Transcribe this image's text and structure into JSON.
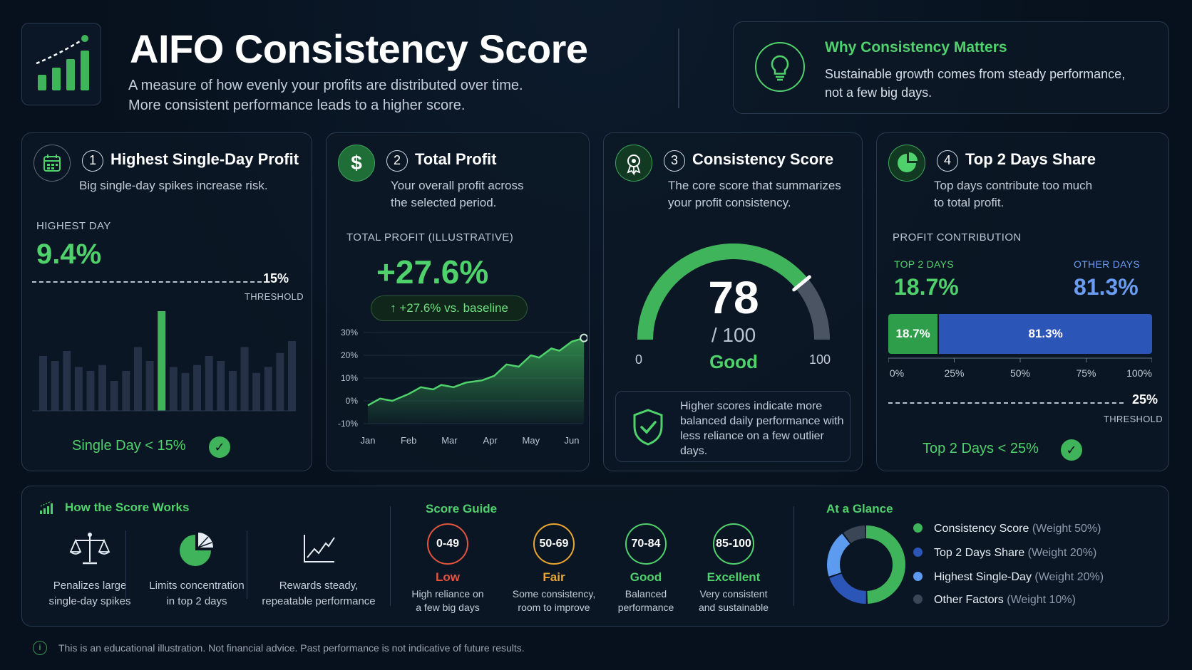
{
  "header": {
    "title": "AIFO Consistency Score",
    "subtitle_line1": "A measure of how evenly your profits are distributed over time.",
    "subtitle_line2": "More consistent performance leads to a higher score."
  },
  "why": {
    "title": "Why Consistency Matters",
    "text_line1": "Sustainable growth comes from steady performance,",
    "text_line2": "not a few big days."
  },
  "card1": {
    "number": "1",
    "title": "Highest Single-Day Profit",
    "desc": "Big single-day spikes increase risk.",
    "caption": "HIGHEST DAY",
    "value": "9.4%",
    "threshold_value": "15%",
    "threshold_label": "THRESHOLD",
    "status": "Single Day < 15%",
    "bar_heights": [
      0.55,
      0.5,
      0.6,
      0.44,
      0.4,
      0.46,
      0.3,
      0.4,
      0.64,
      0.5,
      1.0,
      0.44,
      0.38,
      0.46,
      0.55,
      0.5,
      0.4,
      0.64,
      0.38,
      0.44,
      0.58,
      0.7
    ],
    "highlight_index": 10
  },
  "card2": {
    "number": "2",
    "title": "Total Profit",
    "desc_line1": "Your overall profit across",
    "desc_line2": "the selected period.",
    "caption": "TOTAL PROFIT (ILLUSTRATIVE)",
    "value": "+27.6%",
    "badge": "+27.6% vs. baseline"
  },
  "chart_data": {
    "type": "area",
    "x": [
      "Jan",
      "Feb",
      "Mar",
      "Apr",
      "May",
      "Jun"
    ],
    "y_ticks": [
      "30%",
      "20%",
      "10%",
      "0%",
      "-10%"
    ],
    "ylim": [
      -10,
      30
    ],
    "points": [
      [
        0,
        -2
      ],
      [
        0.3,
        1
      ],
      [
        0.6,
        0
      ],
      [
        1.0,
        3
      ],
      [
        1.3,
        6
      ],
      [
        1.6,
        5
      ],
      [
        1.8,
        7
      ],
      [
        2.1,
        6
      ],
      [
        2.4,
        8
      ],
      [
        2.8,
        9
      ],
      [
        3.1,
        11
      ],
      [
        3.4,
        16
      ],
      [
        3.7,
        15
      ],
      [
        4.0,
        20
      ],
      [
        4.2,
        19
      ],
      [
        4.5,
        23
      ],
      [
        4.7,
        22
      ],
      [
        5.0,
        26
      ],
      [
        5.3,
        27.6
      ]
    ]
  },
  "card3": {
    "number": "3",
    "title": "Consistency Score",
    "desc_line1": "The core score that summarizes",
    "desc_line2": "your profit consistency.",
    "score": "78",
    "score_value": 78,
    "out_of": "/ 100",
    "rating": "Good",
    "min": "0",
    "max": "100",
    "note": "Higher scores indicate more balanced daily performance with less reliance on a few outlier days."
  },
  "card4": {
    "number": "4",
    "title": "Top 2 Days Share",
    "desc_line1": "Top days contribute too much",
    "desc_line2": "to total profit.",
    "caption": "PROFIT CONTRIBUTION",
    "top_label": "TOP 2 DAYS",
    "top_value": "18.7%",
    "top_share": 18.7,
    "other_label": "OTHER DAYS",
    "other_value": "81.3%",
    "axis_ticks": [
      "0%",
      "25%",
      "50%",
      "75%",
      "100%"
    ],
    "threshold_value": "25%",
    "threshold_label": "THRESHOLD",
    "status": "Top 2 Days < 25%"
  },
  "how": {
    "title": "How the Score Works",
    "items": [
      {
        "line1": "Penalizes large",
        "line2": "single-day spikes"
      },
      {
        "line1": "Limits concentration",
        "line2": "in top 2 days"
      },
      {
        "line1": "Rewards steady,",
        "line2": "repeatable performance"
      }
    ]
  },
  "guide": {
    "title": "Score Guide",
    "items": [
      {
        "range": "0-49",
        "label": "Low",
        "line1": "High reliance on",
        "line2": "a few big days",
        "color": "#e2553f"
      },
      {
        "range": "50-69",
        "label": "Fair",
        "line1": "Some consistency,",
        "line2": "room to improve",
        "color": "#e9a632"
      },
      {
        "range": "70-84",
        "label": "Good",
        "line1": "Balanced",
        "line2": "performance",
        "color": "#4fd16b"
      },
      {
        "range": "85-100",
        "label": "Excellent",
        "line1": "Very consistent",
        "line2": "and sustainable",
        "color": "#4fd16b"
      }
    ]
  },
  "glance": {
    "title": "At a Glance",
    "items": [
      {
        "name": "Consistency Score",
        "weight": "(Weight 50%)",
        "share": 50,
        "color": "#3fb45a"
      },
      {
        "name": "Top 2 Days Share",
        "weight": "(Weight 20%)",
        "share": 20,
        "color": "#2c55b8"
      },
      {
        "name": "Highest Single-Day",
        "weight": "(Weight 20%)",
        "share": 20,
        "color": "#5d9bf0"
      },
      {
        "name": "Other Factors",
        "weight": "(Weight 10%)",
        "share": 10,
        "color": "#3a4556"
      }
    ]
  },
  "disclaimer": "This is an educational illustration. Not financial advice. Past performance is not indicative of future results."
}
